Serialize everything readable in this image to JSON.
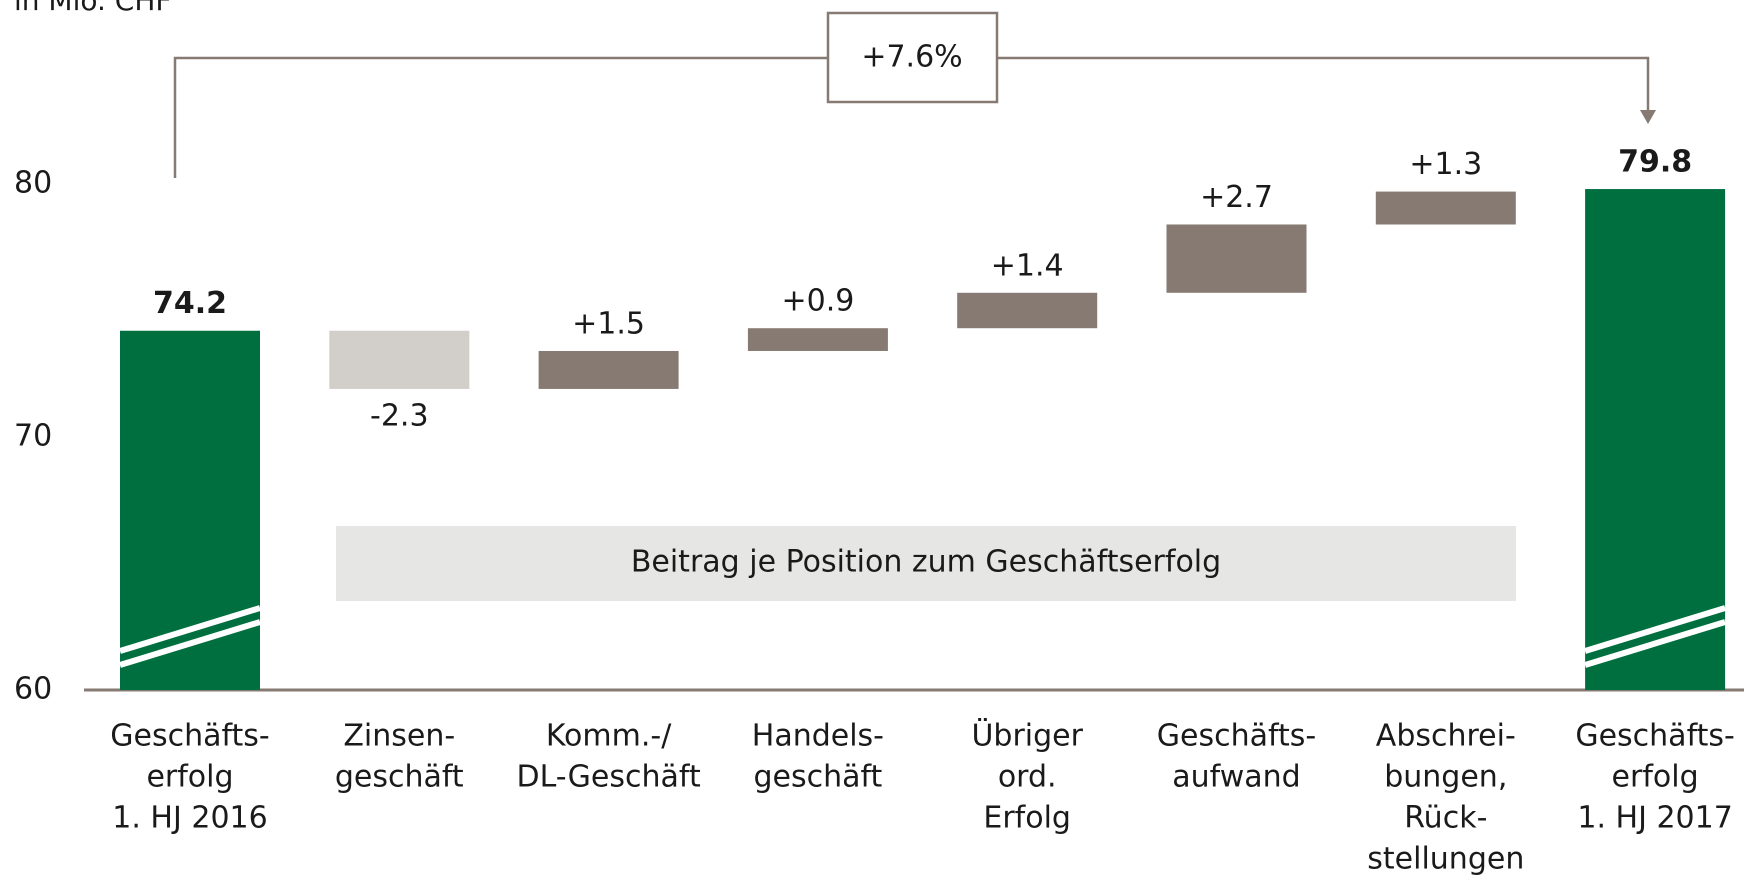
{
  "chart_data": {
    "type": "waterfall",
    "unit_label": "in Mio. CHF",
    "annotation": "+7.6%",
    "note_box": "Beitrag je Position zum Geschäftserfolg",
    "categories": [
      [
        "Geschäfts-",
        "erfolg",
        "1. HJ 2016"
      ],
      [
        "Zinsen-",
        "geschäft"
      ],
      [
        "Komm.-/",
        "DL-Geschäft"
      ],
      [
        "Handels-",
        "geschäft"
      ],
      [
        "Übriger",
        "ord.",
        "Erfolg"
      ],
      [
        "Geschäfts-",
        "aufwand"
      ],
      [
        "Abschrei-",
        "bungen,",
        "Rück-",
        "stellungen"
      ],
      [
        "Geschäfts-",
        "erfolg",
        "1. HJ 2017"
      ]
    ],
    "values": [
      74.2,
      -2.3,
      1.5,
      0.9,
      1.4,
      2.7,
      1.3,
      79.8
    ],
    "value_labels": [
      "74.2",
      "-2.3",
      "+1.5",
      "+0.9",
      "+1.4",
      "+2.7",
      "+1.3",
      "79.8"
    ],
    "measure": [
      "absolute",
      "relative",
      "relative",
      "relative",
      "relative",
      "relative",
      "relative",
      "absolute"
    ],
    "colors": {
      "absolute": "#006f3f",
      "increase": "#867a72",
      "decrease": "#d2cfcb"
    },
    "ylim": [
      60,
      80
    ],
    "yticks": [
      60,
      70,
      80
    ]
  }
}
